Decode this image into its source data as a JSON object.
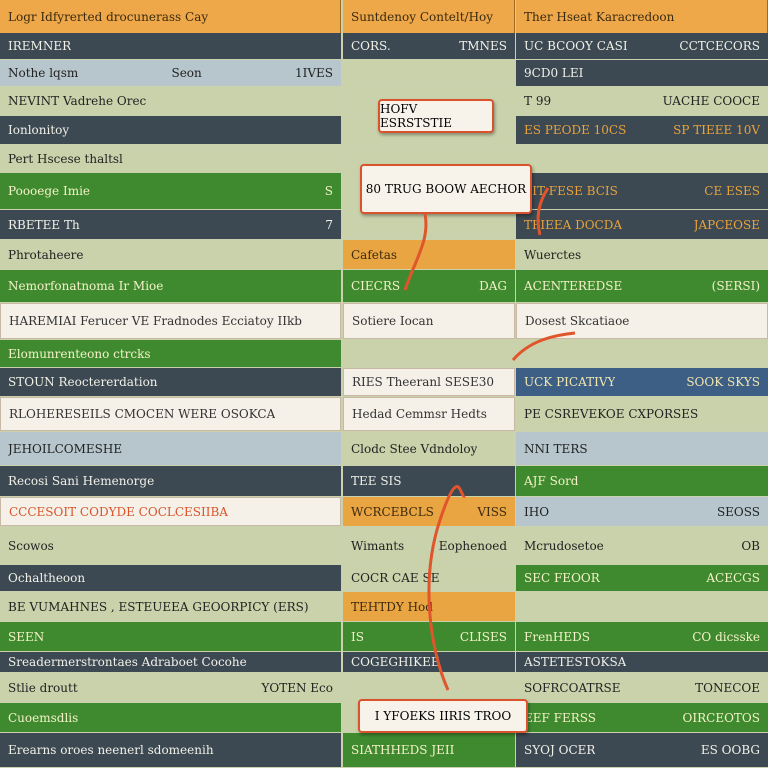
{
  "header": [
    "Logr Idfyrerted drocunerass Cay",
    "Suntdenoy Contelt/Hoy",
    "Ther Hseat Karacredoon"
  ],
  "rows": [
    {
      "left": [
        "IREMNER"
      ],
      "middle": [
        "CORS.",
        "TMNES"
      ],
      "right": [
        "UC BCOOY CASI",
        "CCTCECORS"
      ]
    },
    {
      "left": [
        "Nothe lqsm",
        "Seon",
        "1IVES"
      ],
      "middle": [],
      "right": [
        "9CD0 LEI"
      ]
    },
    {
      "left": [
        "NEVINT Vadrehe Orec"
      ],
      "middle": [],
      "right": [
        "T 99",
        "UACHE COOCE"
      ]
    },
    {
      "left": [
        "Ionlonitoy"
      ],
      "middle": [],
      "right": [
        "ES PEODE 10CS",
        "SP TIEEE 10V"
      ]
    },
    {
      "left": [
        "Pert Hscese thaltsl"
      ],
      "middle": [],
      "right": []
    },
    {
      "left": [
        "Poooege Imie",
        "S"
      ],
      "middle": [],
      "right": [
        "SIT FESE BCIS",
        "CE ESES"
      ]
    },
    {
      "left": [
        "RBETEE Th",
        "7"
      ],
      "middle": [],
      "right": [
        "TFIEEA DOCDA",
        "JAPCEOSE"
      ]
    },
    {
      "left": [
        "Phrotaheere"
      ],
      "middle": [
        "Cafetas"
      ],
      "right": [
        "Wuerctes"
      ]
    },
    {
      "left": [
        "Nemorfonatnoma Ir Mioe"
      ],
      "middle": [
        "CIECRS",
        "DAG"
      ],
      "right": [
        "ACENTEREDSE",
        "(SERSI)"
      ]
    },
    {
      "left": [
        "HAREMIAI Ferucer VE  Fradnodes Ecciatoy IIkb"
      ],
      "middle": [
        "Sotiere Iocan"
      ],
      "right": [
        "Dosest Skcatiaoe"
      ]
    },
    {
      "left": [
        "Elomunrenteono ctrcks"
      ],
      "middle": [],
      "right": []
    },
    {
      "left": [
        "STOUN Reoctererdation"
      ],
      "middle": [
        "RIES Theeranl  SESE30"
      ],
      "right": [
        "UCK PICATIVY",
        "SOOK SKYS"
      ]
    },
    {
      "left": [
        "RLOHERESEILS  CMOCEN  WERE OSOKCA"
      ],
      "middle": [
        "Hedad Cemmsr  Hedts"
      ],
      "right": [
        "PE  CSREVEKOE   CXPORSES"
      ]
    },
    {
      "left": [
        "JEHOILCOMESHE"
      ],
      "middle": [
        "Clodc Stee  Vdndoloy"
      ],
      "right": [
        "NNI TERS"
      ]
    },
    {
      "left": [
        "Recosi Sani Hemenorge"
      ],
      "middle": [
        "TEE SIS"
      ],
      "right": [
        "AJF Sord"
      ]
    },
    {
      "left": [
        "CCCESOIT CODYDE COCLCESIIBA"
      ],
      "middle": [
        "WCRCEBCLS",
        "VISS"
      ],
      "right": [
        "IHO",
        "SEOSS"
      ]
    },
    {
      "left": [
        "Scowos"
      ],
      "middle": [
        "Wimants",
        "Eophenoed"
      ],
      "right": [
        "Mcrudosetoe",
        "OB"
      ]
    },
    {
      "left": [
        "Ochaltheoon"
      ],
      "middle": [
        "COCR CAE SE"
      ],
      "right": [
        "SEC FEOOR",
        "ACECGS"
      ]
    },
    {
      "left": [
        "BE VUMAHNES , ESTEUEEA GEOORPICY (ERS)"
      ],
      "middle": [
        "TEHTDY Hod"
      ],
      "right": []
    },
    {
      "left": [
        "SEEN"
      ],
      "middle": [
        "IS",
        "CLISES"
      ],
      "right": [
        "FrenHEDS",
        "CO dicsske"
      ]
    },
    {
      "left": [
        "Sreadermerstrontaes Adraboet Cocohe"
      ],
      "middle": [
        "COGEGHIKEE"
      ],
      "right": [
        "ASTETESTOKSA"
      ]
    },
    {
      "left": [
        "Stlie droutt",
        "YOTEN Eco"
      ],
      "middle": [],
      "right": [
        "SOFRCOATRSE",
        "TONECOE"
      ]
    },
    {
      "left": [
        "Cuoemsdlis"
      ],
      "middle": [],
      "right": [
        "EEF FERSS",
        "OIRCEOTOS"
      ]
    },
    {
      "left": [
        "Erearns oroes neenerl sdomeenih"
      ],
      "middle": [
        "SIATHHEDS JEII"
      ],
      "right": [
        "SYOJ OCER",
        "ES OOBG"
      ]
    }
  ],
  "callouts": [
    "HOFV ESRSTSTIE",
    "80 TRUG BOOW AECHOR",
    "I YFOEKS  IIRIS  TROO"
  ]
}
